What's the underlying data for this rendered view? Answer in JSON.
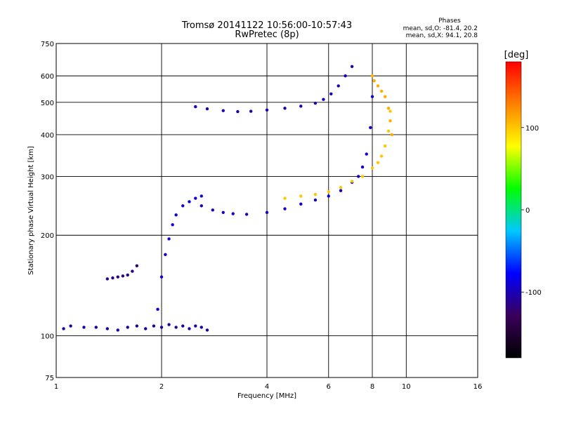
{
  "chart_data": {
    "type": "scatter",
    "title": "Tromsø 20141122 10:56:00-10:57:43",
    "subtitle": "RwPretec (8p)",
    "xlabel": "Frequency [MHz]",
    "ylabel": "Stationary phase Virtual Height [km]",
    "x_scale": "log",
    "y_scale": "log",
    "xlim": [
      1,
      16
    ],
    "ylim": [
      75,
      750
    ],
    "x_ticks": [
      1,
      2,
      4,
      6,
      8,
      10,
      16
    ],
    "x_tick_labels": [
      "1",
      "2",
      "4",
      "6",
      "8",
      "10",
      "16"
    ],
    "y_ticks": [
      75,
      100,
      200,
      300,
      400,
      500,
      600,
      750
    ],
    "y_tick_labels": [
      "75",
      "100",
      "200",
      "300",
      "400",
      "500",
      "600",
      "750"
    ],
    "grid": true,
    "stats": {
      "heading": "Phases",
      "line_o": "mean, sd,O: -81.4, 20.2",
      "line_x": "mean, sd,X:  94.1, 20.8"
    },
    "colorbar": {
      "label": "[deg]",
      "range": [
        -180,
        180
      ],
      "ticks": [
        100,
        0,
        -100
      ],
      "tick_labels": [
        "100",
        "0",
        "-100"
      ],
      "colors": [
        "#000000",
        "#3a005a",
        "#0000ff",
        "#00c8ff",
        "#00ff00",
        "#ffff00",
        "#ff8000",
        "#ff0000"
      ]
    },
    "traces": [
      {
        "name": "",
        "x": [
          1.05,
          1.1,
          1.2,
          1.3,
          1.4,
          1.5,
          1.6,
          1.7,
          1.8,
          1.9,
          2.0,
          2.1,
          2.2,
          2.3,
          2.4,
          2.5,
          2.6,
          2.7
        ],
        "y": [
          105,
          107,
          106,
          106,
          105,
          104,
          106,
          107,
          105,
          107,
          106,
          108,
          106,
          107,
          105,
          107,
          106,
          104
        ],
        "phase": -105
      },
      {
        "name": "",
        "x": [
          1.4,
          1.45,
          1.5,
          1.55,
          1.6,
          1.65,
          1.7
        ],
        "y": [
          148,
          149,
          150,
          151,
          152,
          156,
          162
        ],
        "phase": -115
      },
      {
        "name": "",
        "x": [
          1.95,
          2.0,
          2.05,
          2.1,
          2.15,
          2.2,
          2.3,
          2.4,
          2.5,
          2.6
        ],
        "y": [
          120,
          150,
          175,
          195,
          215,
          230,
          245,
          252,
          258,
          262
        ],
        "phase": -90
      },
      {
        "name": "",
        "x": [
          2.6,
          2.8,
          3.0,
          3.2,
          3.5,
          4.0,
          4.5,
          5.0,
          5.5,
          6.0,
          6.5,
          7.0,
          7.3,
          7.5,
          7.7,
          7.9,
          8.0
        ],
        "y": [
          245,
          238,
          234,
          232,
          231,
          234,
          240,
          248,
          255,
          262,
          272,
          288,
          300,
          320,
          350,
          420,
          520
        ],
        "phase": -95
      },
      {
        "name": "",
        "x": [
          4.5,
          5.0,
          5.5,
          6.0,
          6.5,
          7.0,
          7.5,
          8.0,
          8.3,
          8.5,
          8.7,
          8.9,
          9.0
        ],
        "y": [
          258,
          262,
          265,
          270,
          278,
          290,
          300,
          318,
          330,
          345,
          370,
          410,
          470
        ],
        "phase": 100
      },
      {
        "name": "",
        "x": [
          2.5,
          2.7,
          3.0,
          3.3,
          3.6,
          4.0,
          4.5,
          5.0,
          5.5,
          5.8,
          6.1,
          6.4,
          6.7,
          7.0
        ],
        "y": [
          485,
          478,
          472,
          469,
          470,
          474,
          480,
          487,
          497,
          510,
          530,
          560,
          600,
          640
        ],
        "phase": -100
      },
      {
        "name": "",
        "x": [
          8.0,
          8.1,
          8.3,
          8.5,
          8.7,
          8.9,
          9.0,
          9.1
        ],
        "y": [
          600,
          580,
          560,
          540,
          520,
          480,
          440,
          400
        ],
        "phase": 110
      }
    ]
  }
}
